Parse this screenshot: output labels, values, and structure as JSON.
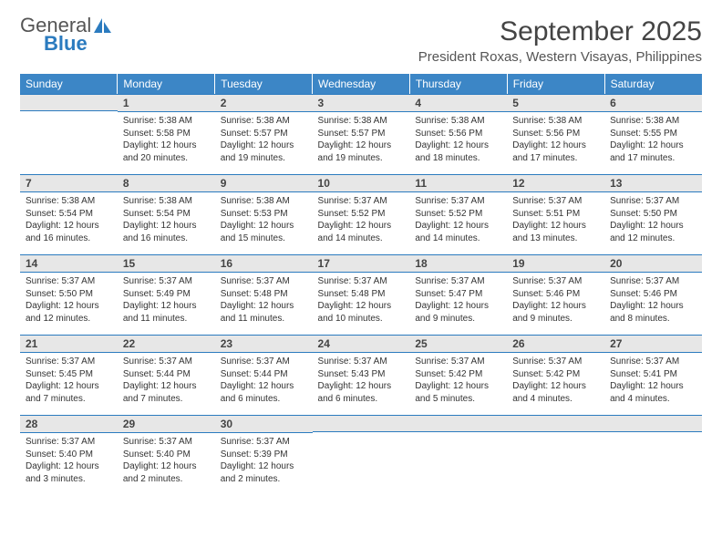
{
  "logo": {
    "word1": "General",
    "word2": "Blue"
  },
  "title": "September 2025",
  "location": "President Roxas, Western Visayas, Philippines",
  "headers": [
    "Sunday",
    "Monday",
    "Tuesday",
    "Wednesday",
    "Thursday",
    "Friday",
    "Saturday"
  ],
  "colors": {
    "header_bg": "#3c86c6",
    "accent": "#2b7bbf",
    "daynum_bg": "#e7e7e7"
  },
  "weeks": [
    [
      null,
      {
        "n": "1",
        "sr": "Sunrise: 5:38 AM",
        "ss": "Sunset: 5:58 PM",
        "dl": "Daylight: 12 hours and 20 minutes."
      },
      {
        "n": "2",
        "sr": "Sunrise: 5:38 AM",
        "ss": "Sunset: 5:57 PM",
        "dl": "Daylight: 12 hours and 19 minutes."
      },
      {
        "n": "3",
        "sr": "Sunrise: 5:38 AM",
        "ss": "Sunset: 5:57 PM",
        "dl": "Daylight: 12 hours and 19 minutes."
      },
      {
        "n": "4",
        "sr": "Sunrise: 5:38 AM",
        "ss": "Sunset: 5:56 PM",
        "dl": "Daylight: 12 hours and 18 minutes."
      },
      {
        "n": "5",
        "sr": "Sunrise: 5:38 AM",
        "ss": "Sunset: 5:56 PM",
        "dl": "Daylight: 12 hours and 17 minutes."
      },
      {
        "n": "6",
        "sr": "Sunrise: 5:38 AM",
        "ss": "Sunset: 5:55 PM",
        "dl": "Daylight: 12 hours and 17 minutes."
      }
    ],
    [
      {
        "n": "7",
        "sr": "Sunrise: 5:38 AM",
        "ss": "Sunset: 5:54 PM",
        "dl": "Daylight: 12 hours and 16 minutes."
      },
      {
        "n": "8",
        "sr": "Sunrise: 5:38 AM",
        "ss": "Sunset: 5:54 PM",
        "dl": "Daylight: 12 hours and 16 minutes."
      },
      {
        "n": "9",
        "sr": "Sunrise: 5:38 AM",
        "ss": "Sunset: 5:53 PM",
        "dl": "Daylight: 12 hours and 15 minutes."
      },
      {
        "n": "10",
        "sr": "Sunrise: 5:37 AM",
        "ss": "Sunset: 5:52 PM",
        "dl": "Daylight: 12 hours and 14 minutes."
      },
      {
        "n": "11",
        "sr": "Sunrise: 5:37 AM",
        "ss": "Sunset: 5:52 PM",
        "dl": "Daylight: 12 hours and 14 minutes."
      },
      {
        "n": "12",
        "sr": "Sunrise: 5:37 AM",
        "ss": "Sunset: 5:51 PM",
        "dl": "Daylight: 12 hours and 13 minutes."
      },
      {
        "n": "13",
        "sr": "Sunrise: 5:37 AM",
        "ss": "Sunset: 5:50 PM",
        "dl": "Daylight: 12 hours and 12 minutes."
      }
    ],
    [
      {
        "n": "14",
        "sr": "Sunrise: 5:37 AM",
        "ss": "Sunset: 5:50 PM",
        "dl": "Daylight: 12 hours and 12 minutes."
      },
      {
        "n": "15",
        "sr": "Sunrise: 5:37 AM",
        "ss": "Sunset: 5:49 PM",
        "dl": "Daylight: 12 hours and 11 minutes."
      },
      {
        "n": "16",
        "sr": "Sunrise: 5:37 AM",
        "ss": "Sunset: 5:48 PM",
        "dl": "Daylight: 12 hours and 11 minutes."
      },
      {
        "n": "17",
        "sr": "Sunrise: 5:37 AM",
        "ss": "Sunset: 5:48 PM",
        "dl": "Daylight: 12 hours and 10 minutes."
      },
      {
        "n": "18",
        "sr": "Sunrise: 5:37 AM",
        "ss": "Sunset: 5:47 PM",
        "dl": "Daylight: 12 hours and 9 minutes."
      },
      {
        "n": "19",
        "sr": "Sunrise: 5:37 AM",
        "ss": "Sunset: 5:46 PM",
        "dl": "Daylight: 12 hours and 9 minutes."
      },
      {
        "n": "20",
        "sr": "Sunrise: 5:37 AM",
        "ss": "Sunset: 5:46 PM",
        "dl": "Daylight: 12 hours and 8 minutes."
      }
    ],
    [
      {
        "n": "21",
        "sr": "Sunrise: 5:37 AM",
        "ss": "Sunset: 5:45 PM",
        "dl": "Daylight: 12 hours and 7 minutes."
      },
      {
        "n": "22",
        "sr": "Sunrise: 5:37 AM",
        "ss": "Sunset: 5:44 PM",
        "dl": "Daylight: 12 hours and 7 minutes."
      },
      {
        "n": "23",
        "sr": "Sunrise: 5:37 AM",
        "ss": "Sunset: 5:44 PM",
        "dl": "Daylight: 12 hours and 6 minutes."
      },
      {
        "n": "24",
        "sr": "Sunrise: 5:37 AM",
        "ss": "Sunset: 5:43 PM",
        "dl": "Daylight: 12 hours and 6 minutes."
      },
      {
        "n": "25",
        "sr": "Sunrise: 5:37 AM",
        "ss": "Sunset: 5:42 PM",
        "dl": "Daylight: 12 hours and 5 minutes."
      },
      {
        "n": "26",
        "sr": "Sunrise: 5:37 AM",
        "ss": "Sunset: 5:42 PM",
        "dl": "Daylight: 12 hours and 4 minutes."
      },
      {
        "n": "27",
        "sr": "Sunrise: 5:37 AM",
        "ss": "Sunset: 5:41 PM",
        "dl": "Daylight: 12 hours and 4 minutes."
      }
    ],
    [
      {
        "n": "28",
        "sr": "Sunrise: 5:37 AM",
        "ss": "Sunset: 5:40 PM",
        "dl": "Daylight: 12 hours and 3 minutes."
      },
      {
        "n": "29",
        "sr": "Sunrise: 5:37 AM",
        "ss": "Sunset: 5:40 PM",
        "dl": "Daylight: 12 hours and 2 minutes."
      },
      {
        "n": "30",
        "sr": "Sunrise: 5:37 AM",
        "ss": "Sunset: 5:39 PM",
        "dl": "Daylight: 12 hours and 2 minutes."
      },
      null,
      null,
      null,
      null
    ]
  ]
}
